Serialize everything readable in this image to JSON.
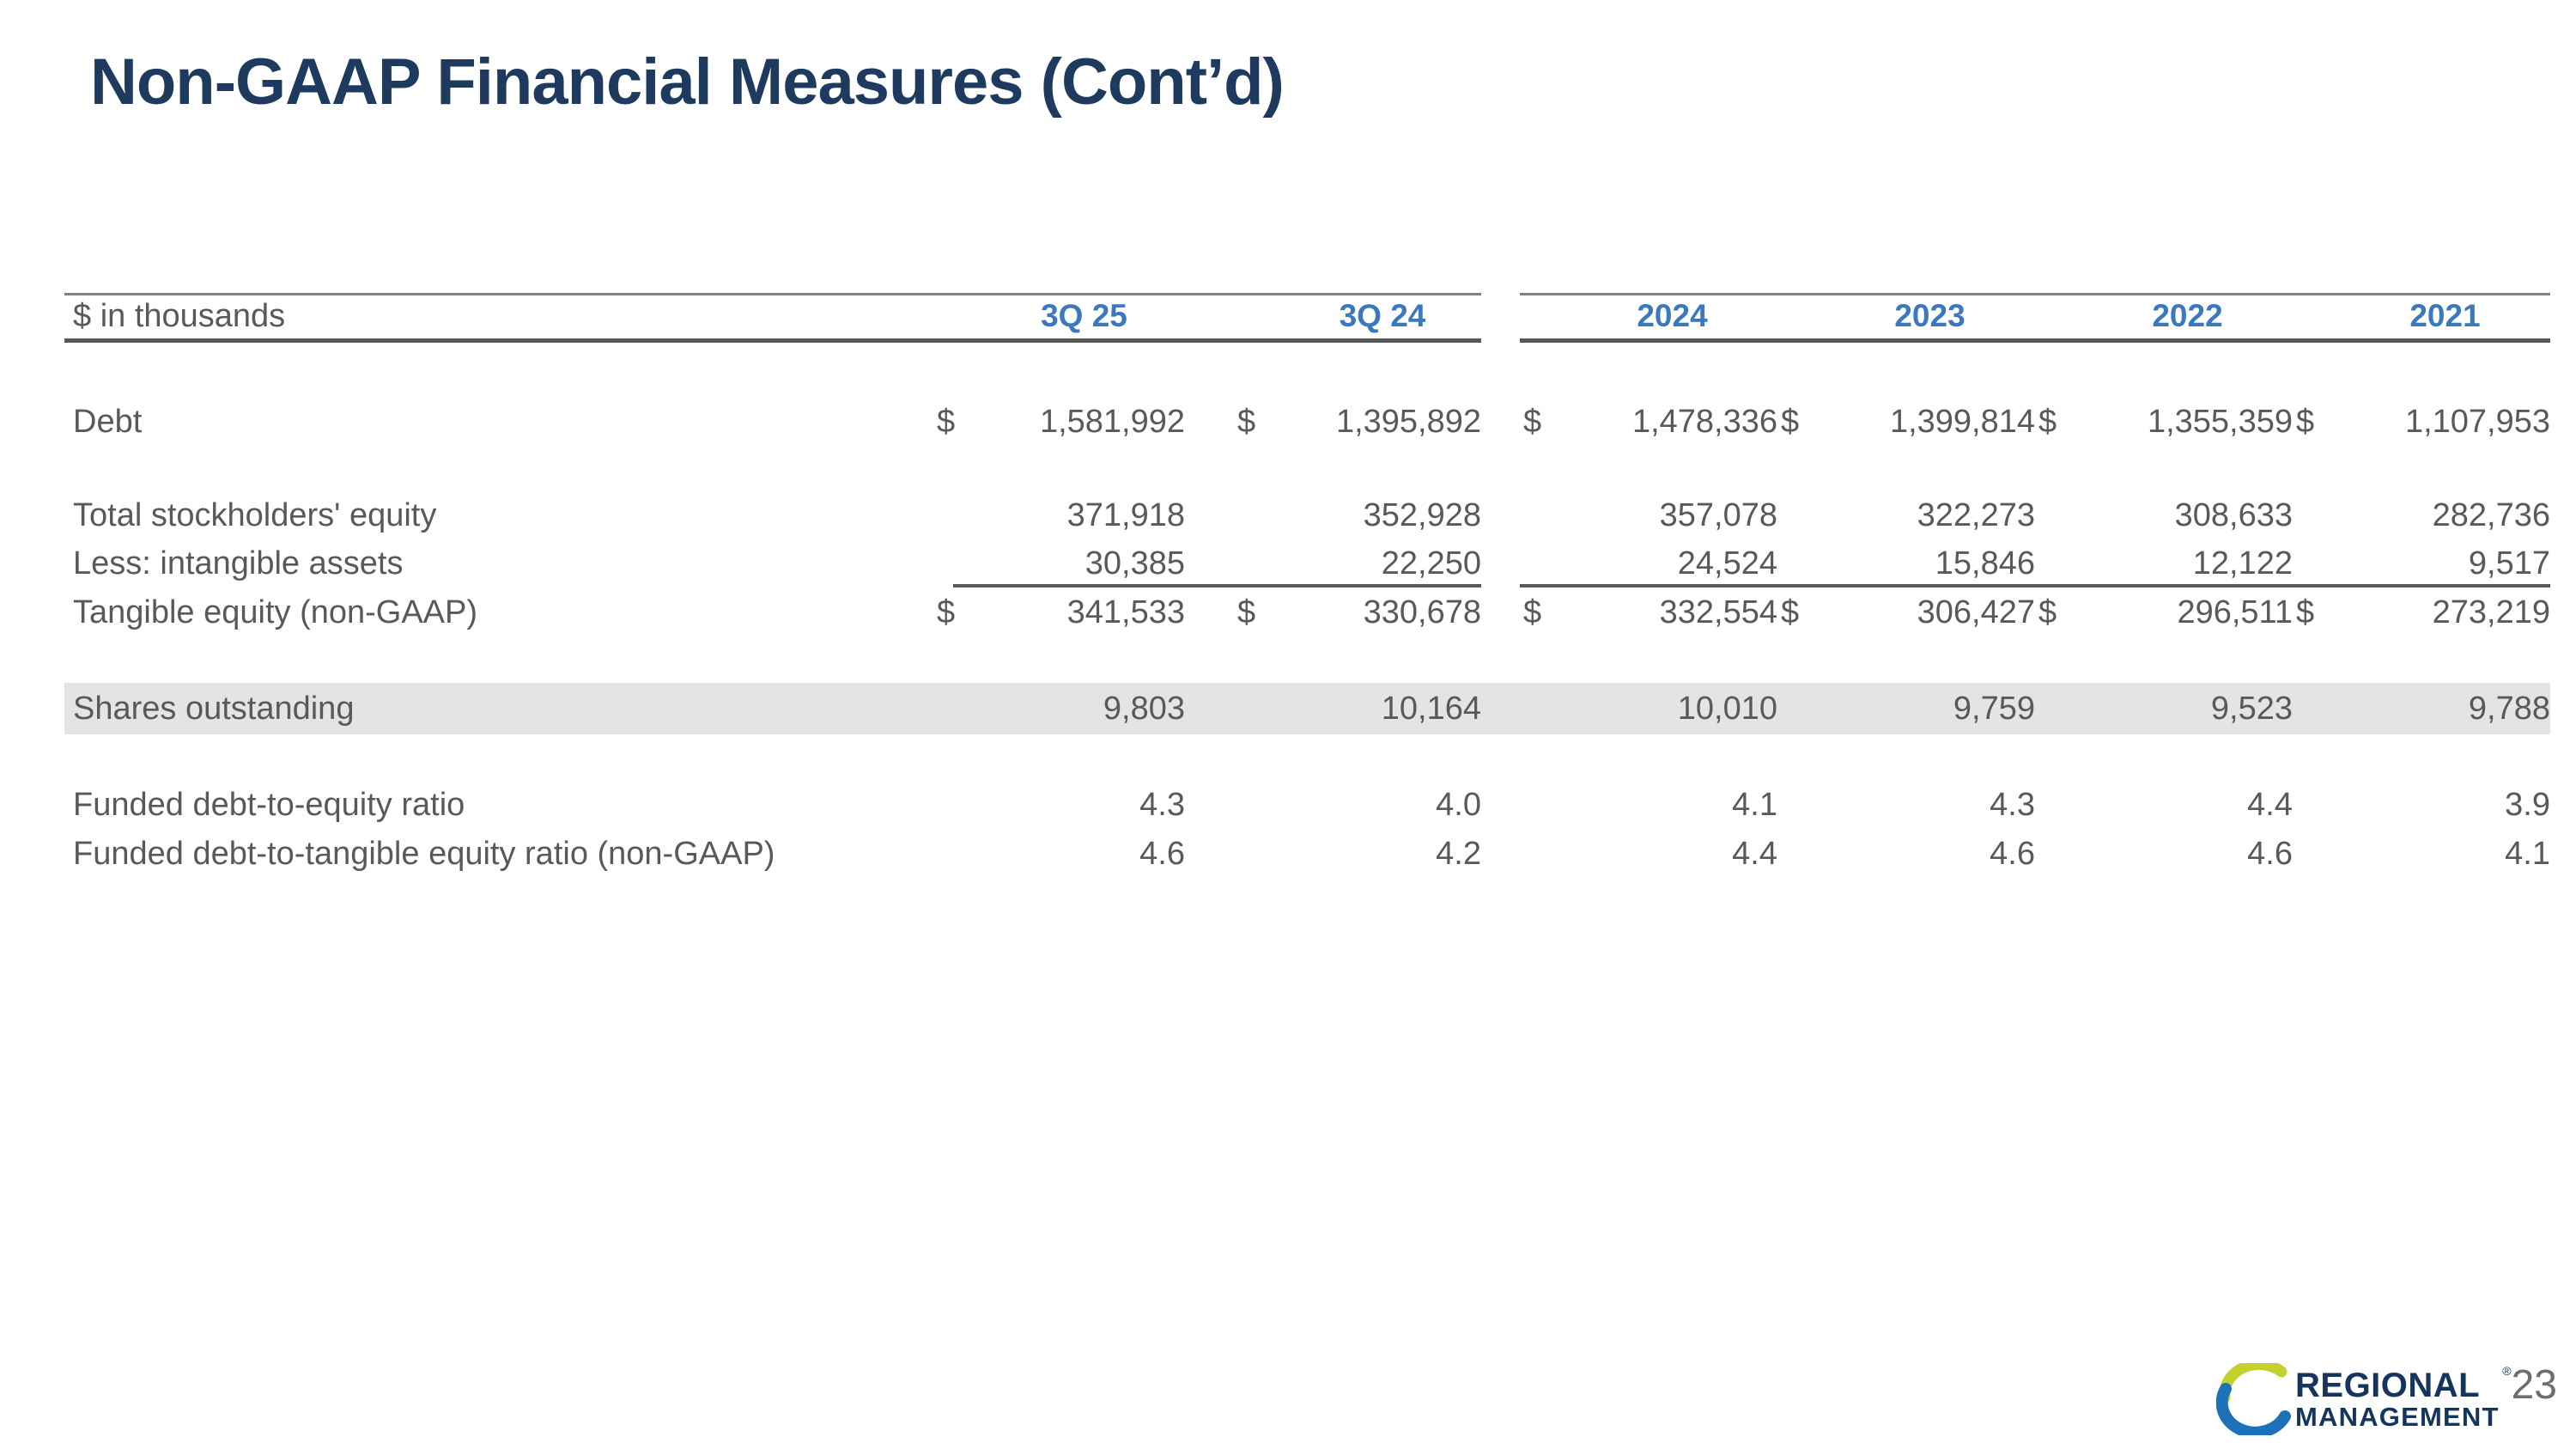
{
  "slide": {
    "title": "Non-GAAP Financial Measures (Cont’d)",
    "page_number": "23"
  },
  "logo": {
    "line1": "REGIONAL",
    "line2": "MANAGEMENT",
    "registered_mark": "®",
    "swoosh_green": "#c3d02e",
    "swoosh_blue": "#1d71b8",
    "text_color": "#16355e"
  },
  "colors": {
    "title": "#1e3a5f",
    "header_blue": "#3b78be",
    "body_text": "#595959",
    "highlight_band": "#e4e4e4",
    "rule_dark": "#595959",
    "rule_light": "#808080",
    "page_number": "#6e6e6e"
  },
  "table": {
    "unit_label": "$ in thousands",
    "columns": [
      "3Q 25",
      "3Q 24",
      "2024",
      "2023",
      "2022",
      "2021"
    ],
    "rows": [
      {
        "label": "Debt",
        "dollar": true,
        "highlight": false,
        "values": [
          "1,581,992",
          "1,395,892",
          "1,478,336",
          "1,399,814",
          "1,355,359",
          "1,107,953"
        ]
      },
      {
        "label": "Total stockholders' equity",
        "dollar": false,
        "highlight": false,
        "values": [
          "371,918",
          "352,928",
          "357,078",
          "322,273",
          "308,633",
          "282,736"
        ]
      },
      {
        "label": "Less: intangible assets",
        "dollar": false,
        "highlight": false,
        "values": [
          "30,385",
          "22,250",
          "24,524",
          "15,846",
          "12,122",
          "9,517"
        ]
      },
      {
        "label": "Tangible equity (non-GAAP)",
        "dollar": true,
        "highlight": false,
        "values": [
          "341,533",
          "330,678",
          "332,554",
          "306,427",
          "296,511",
          "273,219"
        ]
      },
      {
        "label": "Shares outstanding",
        "dollar": false,
        "highlight": true,
        "values": [
          "9,803",
          "10,164",
          "10,010",
          "9,759",
          "9,523",
          "9,788"
        ]
      },
      {
        "label": "Funded debt-to-equity ratio",
        "dollar": false,
        "highlight": false,
        "values": [
          "4.3",
          "4.0",
          "4.1",
          "4.3",
          "4.4",
          "3.9"
        ]
      },
      {
        "label": "Funded debt-to-tangible equity ratio (non-GAAP)",
        "dollar": false,
        "highlight": false,
        "values": [
          "4.6",
          "4.2",
          "4.4",
          "4.6",
          "4.6",
          "4.1"
        ]
      }
    ]
  }
}
